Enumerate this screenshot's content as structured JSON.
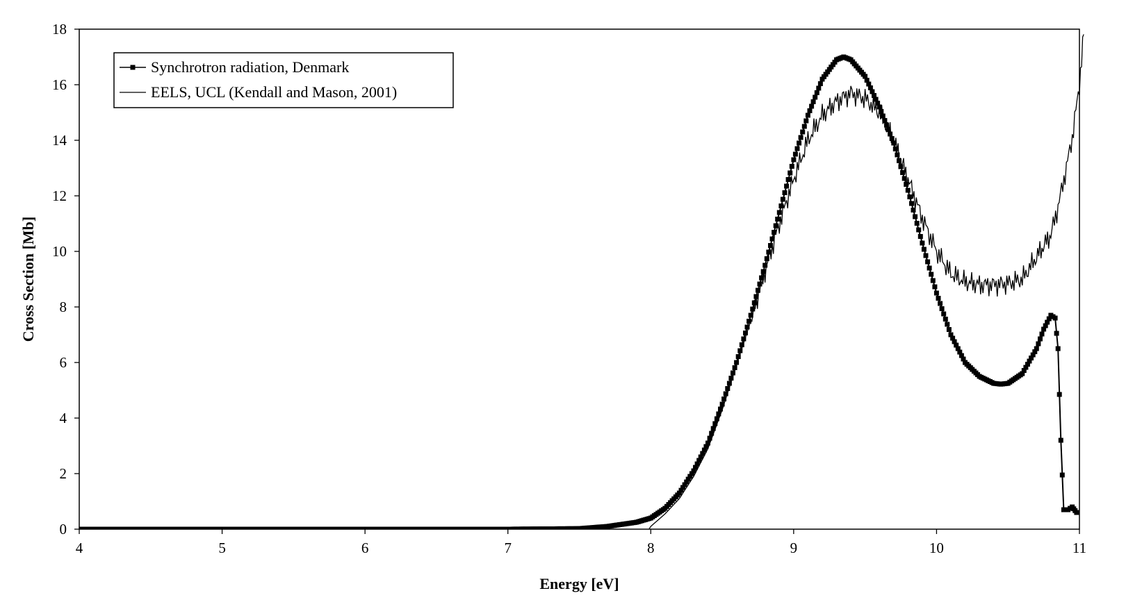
{
  "chart_data": {
    "type": "line",
    "xlabel": "Energy [eV]",
    "ylabel": "Cross Section [Mb]",
    "xlim": [
      4,
      11
    ],
    "ylim": [
      0,
      18
    ],
    "xticks": [
      4,
      5,
      6,
      7,
      8,
      9,
      10,
      11
    ],
    "yticks": [
      0,
      2,
      4,
      6,
      8,
      10,
      12,
      14,
      16,
      18
    ],
    "grid": false,
    "legend_position": "top-left",
    "series": [
      {
        "name": "Synchrotron radiation, Denmark",
        "style": "line-with-square-markers",
        "color": "#000000",
        "x": [
          4.0,
          6.0,
          7.0,
          7.5,
          7.7,
          7.9,
          8.0,
          8.1,
          8.2,
          8.3,
          8.4,
          8.5,
          8.6,
          8.7,
          8.8,
          8.9,
          9.0,
          9.1,
          9.2,
          9.3,
          9.35,
          9.4,
          9.5,
          9.6,
          9.7,
          9.8,
          9.9,
          10.0,
          10.1,
          10.2,
          10.3,
          10.4,
          10.45,
          10.5,
          10.6,
          10.7,
          10.75,
          10.8,
          10.83,
          10.85,
          10.87,
          10.89,
          10.92,
          10.95,
          10.98
        ],
        "values": [
          0.0,
          0.0,
          0.0,
          0.02,
          0.1,
          0.25,
          0.4,
          0.75,
          1.3,
          2.1,
          3.1,
          4.5,
          6.0,
          7.7,
          9.5,
          11.4,
          13.3,
          14.9,
          16.2,
          16.9,
          17.0,
          16.9,
          16.3,
          15.2,
          13.9,
          12.2,
          10.3,
          8.5,
          7.0,
          6.0,
          5.5,
          5.25,
          5.22,
          5.25,
          5.6,
          6.5,
          7.2,
          7.7,
          7.6,
          6.5,
          3.2,
          0.7,
          0.7,
          0.8,
          0.6
        ]
      },
      {
        "name": "EELS, UCL (Kendall and Mason, 2001)",
        "style": "line",
        "color": "#000000",
        "x": [
          7.95,
          8.0,
          8.1,
          8.2,
          8.3,
          8.4,
          8.5,
          8.6,
          8.7,
          8.8,
          8.9,
          9.0,
          9.1,
          9.2,
          9.3,
          9.4,
          9.5,
          9.6,
          9.7,
          9.8,
          9.9,
          10.0,
          10.1,
          10.2,
          10.3,
          10.4,
          10.5,
          10.6,
          10.7,
          10.8,
          10.85,
          10.9,
          10.95,
          11.0,
          11.03
        ],
        "values": [
          -0.3,
          0.1,
          0.55,
          1.1,
          1.9,
          2.9,
          4.3,
          5.9,
          7.5,
          9.3,
          11.0,
          12.6,
          14.0,
          14.9,
          15.4,
          15.7,
          15.5,
          15.0,
          14.0,
          12.6,
          11.2,
          10.0,
          9.2,
          8.9,
          8.8,
          8.8,
          8.85,
          9.0,
          9.8,
          10.6,
          11.6,
          12.8,
          14.1,
          16.0,
          17.8
        ]
      }
    ]
  }
}
